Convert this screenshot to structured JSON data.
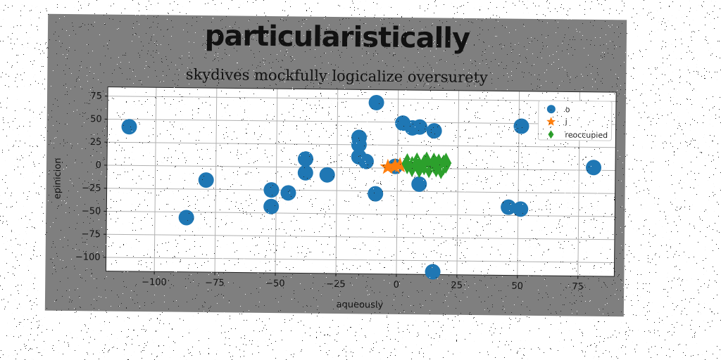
{
  "chart_data": {
    "type": "scatter",
    "title": "particularistically",
    "subtitle": "skydives mockfully logicalize oversurety",
    "xlabel": "aqueously",
    "ylabel": "epinicion",
    "xlim": [
      -120,
      90
    ],
    "ylim": [
      -115,
      85
    ],
    "xticks": [
      -100,
      -75,
      -50,
      -25,
      0,
      25,
      50,
      75
    ],
    "yticks": [
      75,
      50,
      25,
      0,
      -25,
      -50,
      -75,
      -100
    ],
    "xtick_labels": [
      "−100",
      "−75",
      "−50",
      "−25",
      "0",
      "25",
      "50",
      "75"
    ],
    "ytick_labels": [
      "75",
      "50",
      "25",
      "0",
      "−25",
      "−50",
      "−75",
      "−100"
    ],
    "grid": true,
    "legend_position": "top-right",
    "series": [
      {
        "name": "o",
        "marker": "circle",
        "color": "#1f77b4",
        "points": [
          [
            -111,
            42
          ],
          [
            -79,
            -15
          ],
          [
            -87,
            -56
          ],
          [
            -52,
            -25
          ],
          [
            -45,
            -28
          ],
          [
            -52,
            -43
          ],
          [
            -38,
            9
          ],
          [
            -38,
            -6
          ],
          [
            -29,
            -8
          ],
          [
            -16,
            33
          ],
          [
            -16,
            25
          ],
          [
            -16,
            12
          ],
          [
            -13,
            7
          ],
          [
            -9,
            71
          ],
          [
            -9,
            -28
          ],
          [
            2,
            49
          ],
          [
            6,
            44
          ],
          [
            9,
            45
          ],
          [
            15,
            41
          ],
          [
            9,
            -17
          ],
          [
            15,
            -112
          ],
          [
            51,
            47
          ],
          [
            46,
            -41
          ],
          [
            51,
            -43
          ],
          [
            81,
            3
          ],
          [
            -1,
            2
          ]
        ]
      },
      {
        "name": "j",
        "marker": "star",
        "color": "#ff7f0e",
        "points": [
          [
            -4,
            1
          ],
          [
            -1,
            2
          ],
          [
            1,
            3
          ]
        ]
      },
      {
        "name": "reoccupied",
        "marker": "diamond",
        "color": "#2ca02c",
        "points": [
          [
            4,
            5
          ],
          [
            6,
            2
          ],
          [
            8,
            6
          ],
          [
            9,
            1
          ],
          [
            11,
            4
          ],
          [
            12,
            7
          ],
          [
            13,
            1
          ],
          [
            15,
            6
          ],
          [
            16,
            2
          ],
          [
            17,
            5
          ],
          [
            18,
            0
          ],
          [
            19,
            4
          ],
          [
            20,
            6
          ]
        ]
      }
    ]
  }
}
